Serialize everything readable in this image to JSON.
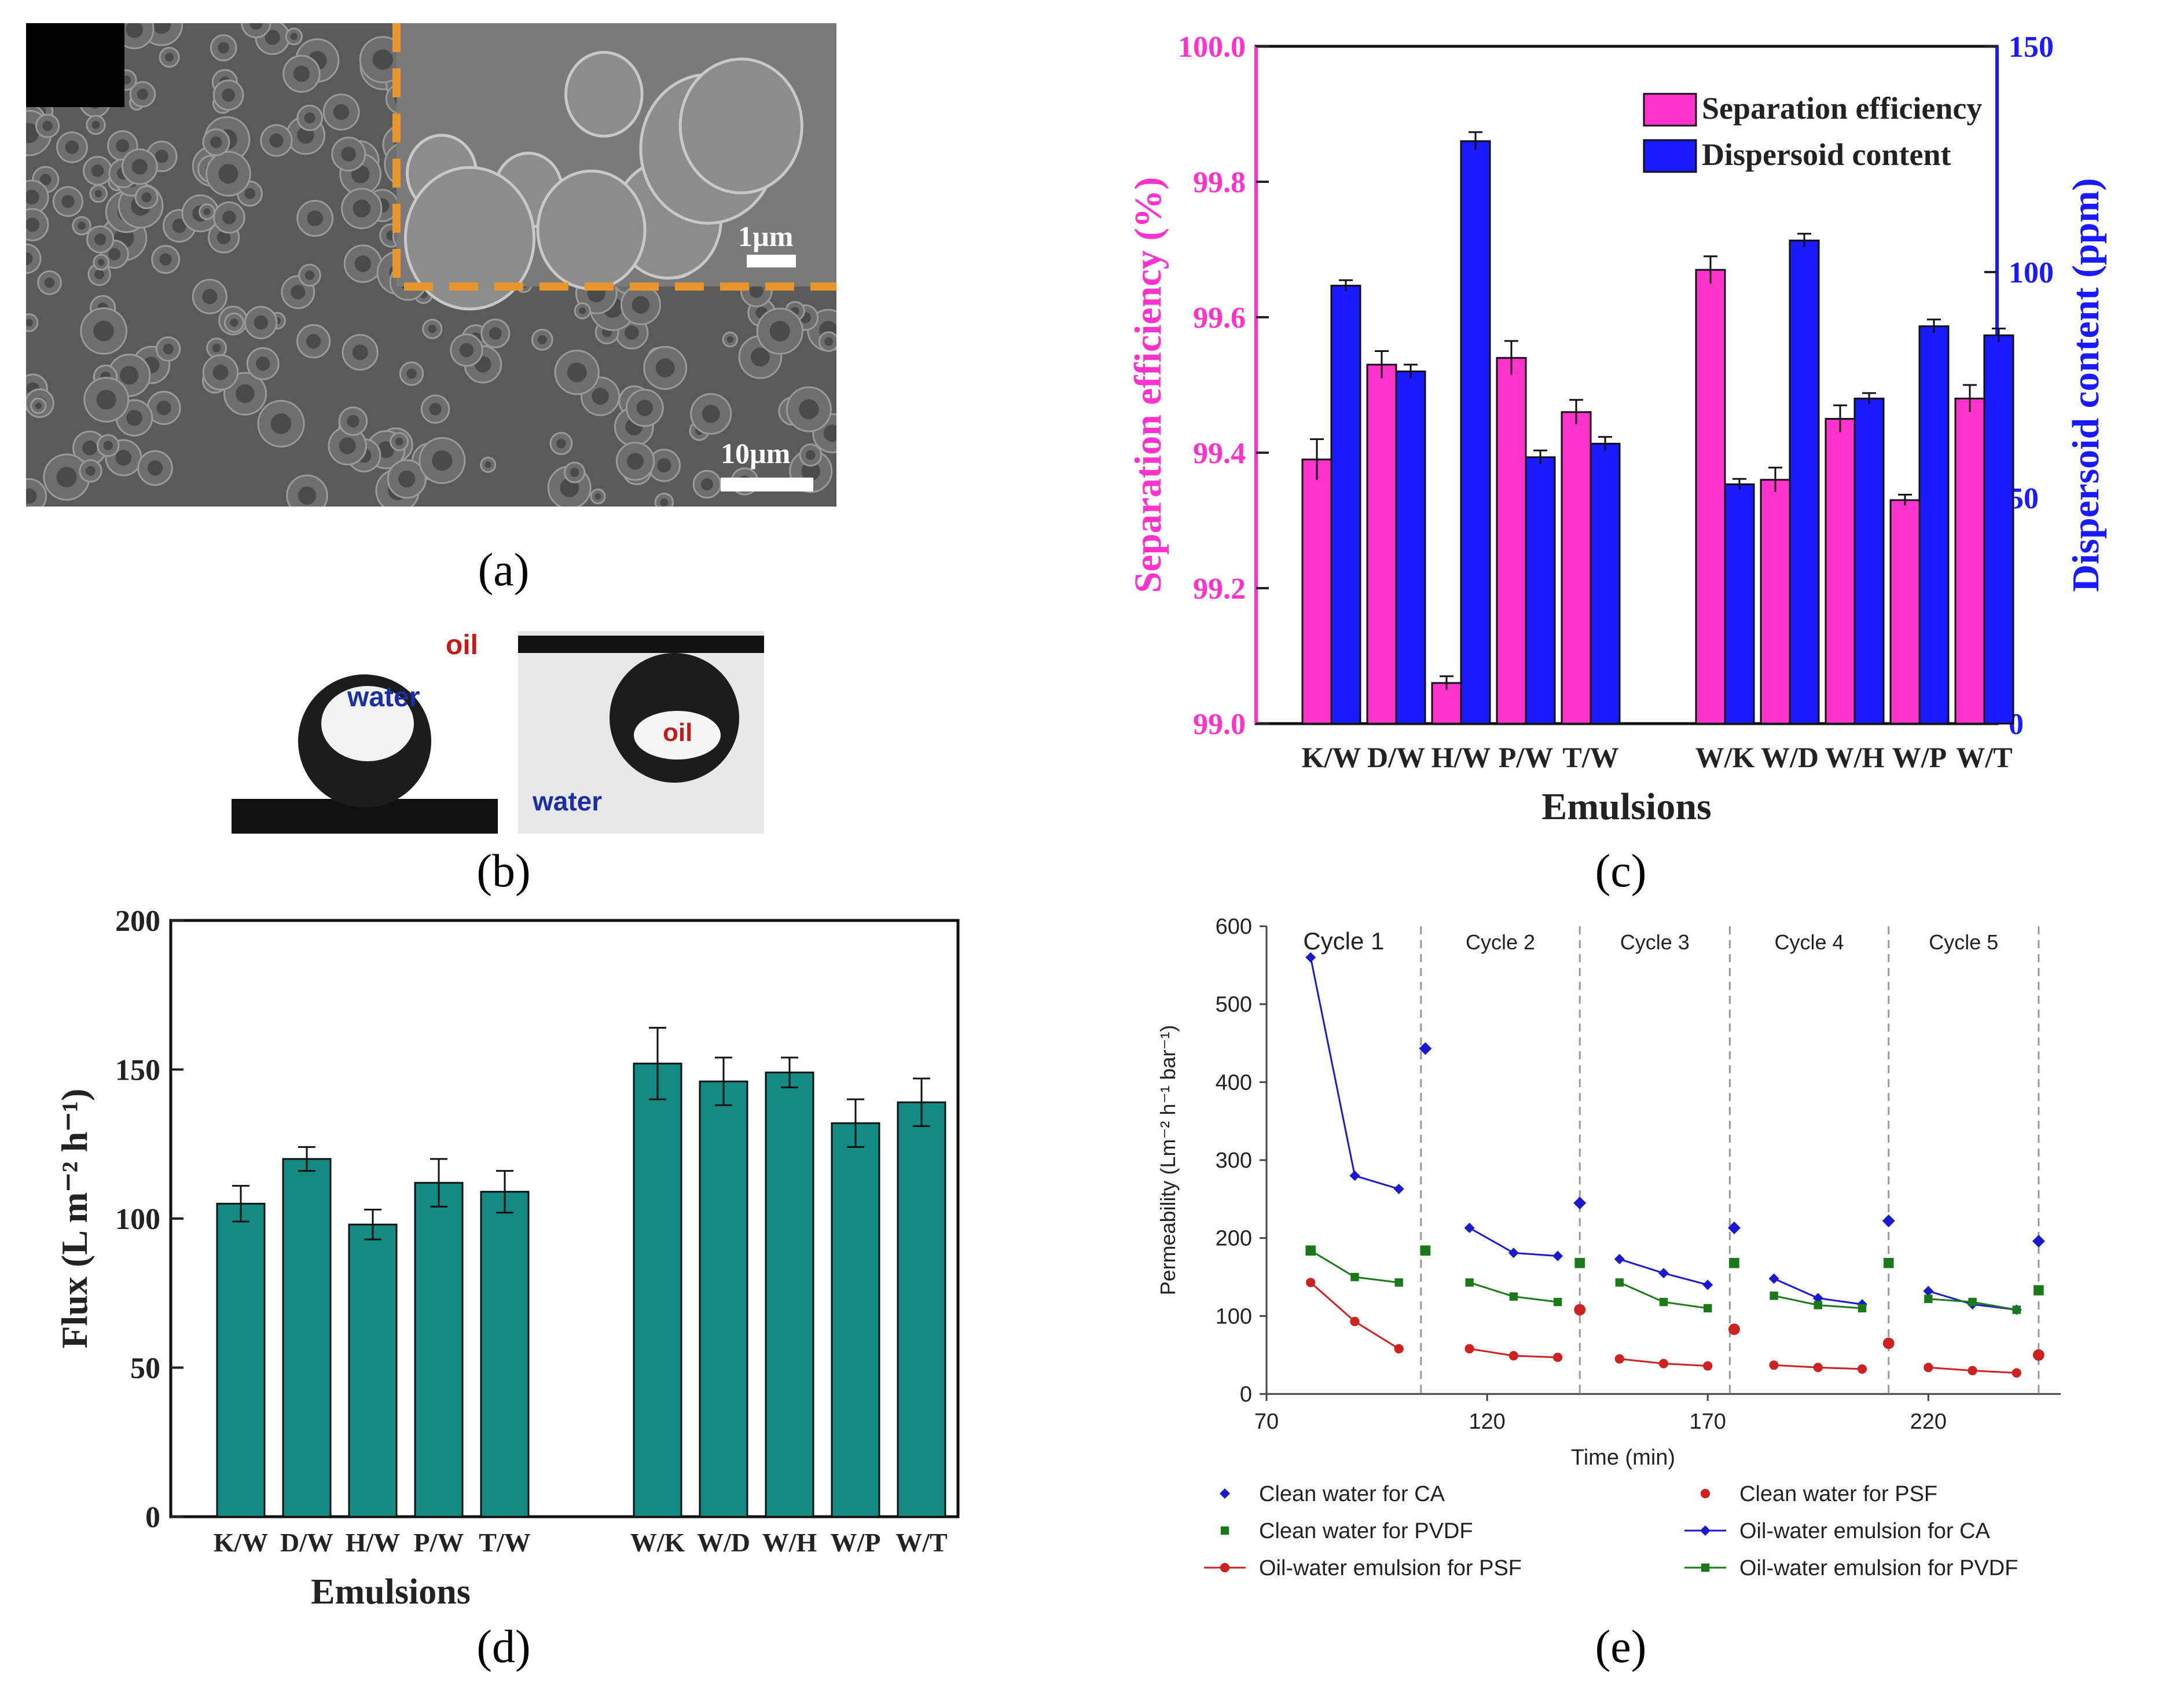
{
  "panel_labels": {
    "a": "(a)",
    "b": "(b)",
    "c": "(c)",
    "d": "(d)",
    "e": "(e)"
  },
  "sem": {
    "scale_inset": "1µm",
    "scale_main": "10µm"
  },
  "droplets": {
    "left_inner": "water",
    "left_outer": "oil",
    "right_inner": "oil",
    "right_outer": "water"
  },
  "colors": {
    "magenta": "#ff33cc",
    "blue": "#1a1aff",
    "teal": "#138a82",
    "ca": "#1a1acc",
    "psf": "#cc2222",
    "pvdf": "#1a7a1a",
    "orange": "#e8962e"
  },
  "chart_data": [
    {
      "id": "c",
      "type": "bar",
      "categories": [
        "K/W",
        "D/W",
        "H/W",
        "P/W",
        "T/W",
        "W/K",
        "W/D",
        "W/H",
        "W/P",
        "W/T"
      ],
      "series": [
        {
          "name": "Separation efficiency",
          "axis": "left",
          "values": [
            99.39,
            99.53,
            99.06,
            99.54,
            99.46,
            99.67,
            99.36,
            99.45,
            99.33,
            99.48
          ],
          "errors": [
            0.03,
            0.02,
            0.01,
            0.025,
            0.018,
            0.02,
            0.018,
            0.02,
            0.008,
            0.02
          ]
        },
        {
          "name": "Dispersoid content",
          "axis": "right",
          "values": [
            97,
            78,
            129,
            59,
            62,
            53,
            107,
            72,
            88,
            86
          ],
          "errors": [
            1.2,
            1.5,
            2,
            1.5,
            1.5,
            1.2,
            1.5,
            1.2,
            1.5,
            1.5
          ]
        }
      ],
      "xlabel": "Emulsions",
      "ylabel": "Separation efficiency (%)",
      "ylabel2": "Dispersoid content (ppm)",
      "ylim": [
        99.0,
        100.0
      ],
      "y2lim": [
        0,
        150
      ],
      "yticks": [
        "99.0",
        "99.2",
        "99.4",
        "99.6",
        "99.8",
        "100.0"
      ],
      "y2ticks": [
        "0",
        "50",
        "100",
        "150"
      ],
      "legend": "top-right"
    },
    {
      "id": "d",
      "type": "bar",
      "categories": [
        "K/W",
        "D/W",
        "H/W",
        "P/W",
        "T/W",
        "W/K",
        "W/D",
        "W/H",
        "W/P",
        "W/T"
      ],
      "values": [
        105,
        120,
        98,
        112,
        109,
        152,
        146,
        149,
        132,
        139
      ],
      "errors": [
        6,
        4,
        5,
        8,
        7,
        12,
        8,
        5,
        8,
        8
      ],
      "xlabel": "Emulsions",
      "ylabel": "Flux (L m⁻² h⁻¹)",
      "ylim": [
        0,
        200
      ],
      "yticks": [
        "0",
        "50",
        "100",
        "150",
        "200"
      ]
    },
    {
      "id": "e",
      "type": "line",
      "xlabel": "Time (min)",
      "ylabel": "Permeability  (Lm⁻² h⁻¹ bar⁻¹)",
      "xlim": [
        70,
        250
      ],
      "ylim": [
        0,
        600
      ],
      "xticks": [
        "70",
        "120",
        "170",
        "220"
      ],
      "yticks": [
        "0",
        "100",
        "200",
        "300",
        "400",
        "500",
        "600"
      ],
      "cycles": [
        "Cycle 1",
        "Cycle 2",
        "Cycle 3",
        "Cycle 4",
        "Cycle 5"
      ],
      "cycle_dividers": [
        105,
        141,
        175,
        211,
        245
      ],
      "series": [
        {
          "name": "Clean water for CA",
          "style": "marker",
          "marker": "diamond",
          "color": "#1a1acc",
          "x": [
            106,
            141,
            176,
            211,
            245
          ],
          "y": [
            443,
            245,
            213,
            222,
            196
          ]
        },
        {
          "name": "Clean water for PSF",
          "style": "marker",
          "marker": "circle",
          "color": "#cc2222",
          "x": [
            141,
            176,
            211,
            245
          ],
          "y": [
            108,
            83,
            65,
            50
          ]
        },
        {
          "name": "Clean water for PVDF",
          "style": "marker",
          "marker": "square",
          "color": "#1a7a1a",
          "x": [
            80,
            106,
            141,
            176,
            211,
            245
          ],
          "y": [
            184,
            184,
            168,
            168,
            168,
            133
          ]
        },
        {
          "name": "Oil-water emulsion for CA",
          "style": "line",
          "marker": "diamond",
          "color": "#1a1acc",
          "segments": [
            {
              "x": [
                80,
                90,
                100
              ],
              "y": [
                560,
                280,
                263
              ]
            },
            {
              "x": [
                116,
                126,
                136
              ],
              "y": [
                213,
                181,
                177
              ]
            },
            {
              "x": [
                150,
                160,
                170
              ],
              "y": [
                173,
                155,
                140
              ]
            },
            {
              "x": [
                185,
                195,
                205
              ],
              "y": [
                148,
                123,
                115
              ]
            },
            {
              "x": [
                220,
                230,
                240
              ],
              "y": [
                132,
                115,
                108
              ]
            }
          ]
        },
        {
          "name": "Oil-water emulsion for PSF",
          "style": "line",
          "marker": "circle",
          "color": "#cc2222",
          "segments": [
            {
              "x": [
                80,
                90,
                100
              ],
              "y": [
                143,
                93,
                58
              ]
            },
            {
              "x": [
                116,
                126,
                136
              ],
              "y": [
                58,
                49,
                47
              ]
            },
            {
              "x": [
                150,
                160,
                170
              ],
              "y": [
                45,
                39,
                36
              ]
            },
            {
              "x": [
                185,
                195,
                205
              ],
              "y": [
                37,
                34,
                32
              ]
            },
            {
              "x": [
                220,
                230,
                240
              ],
              "y": [
                34,
                30,
                27
              ]
            }
          ]
        },
        {
          "name": "Oil-water emulsion for PVDF",
          "style": "line",
          "marker": "square",
          "color": "#1a7a1a",
          "segments": [
            {
              "x": [
                80,
                90,
                100
              ],
              "y": [
                184,
                150,
                143
              ]
            },
            {
              "x": [
                116,
                126,
                136
              ],
              "y": [
                143,
                125,
                118
              ]
            },
            {
              "x": [
                150,
                160,
                170
              ],
              "y": [
                143,
                118,
                110
              ]
            },
            {
              "x": [
                185,
                195,
                205
              ],
              "y": [
                126,
                114,
                110
              ]
            },
            {
              "x": [
                220,
                230,
                240
              ],
              "y": [
                122,
                118,
                108
              ]
            }
          ]
        }
      ],
      "legend": "bottom"
    }
  ]
}
